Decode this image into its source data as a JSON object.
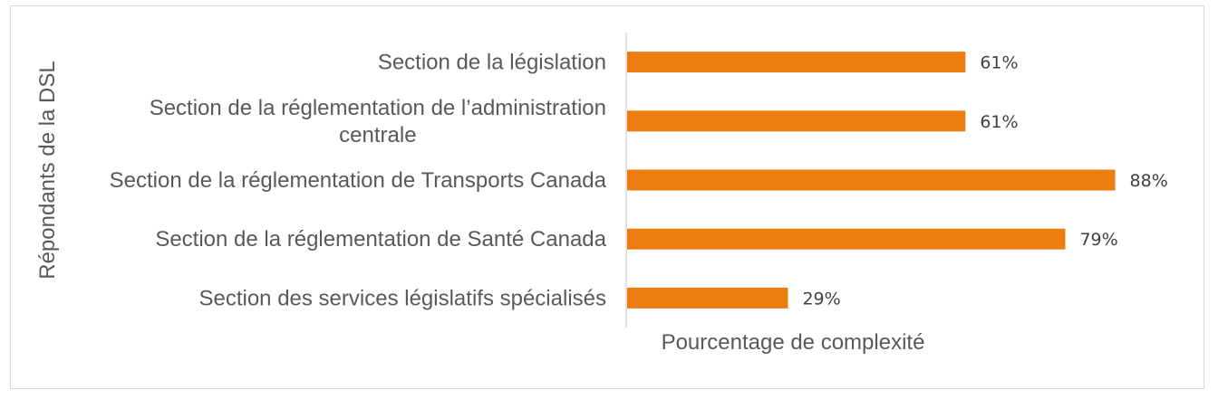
{
  "chart_data": {
    "type": "bar",
    "orientation": "horizontal",
    "categories": [
      "Section de la législation",
      "Section de la réglementation de l’administration centrale",
      "Section de la réglementation de Transports Canada",
      "Section de la réglementation de Santé Canada",
      "Section des services législatifs spécialisés"
    ],
    "category_lines": [
      [
        "Section de la législation"
      ],
      [
        "Section de la réglementation de l’administration",
        "centrale"
      ],
      [
        "Section de la réglementation de Transports Canada"
      ],
      [
        "Section de la réglementation de Santé Canada"
      ],
      [
        "Section des services législatifs spécialisés"
      ]
    ],
    "values": [
      61,
      61,
      88,
      79,
      29
    ],
    "data_labels": [
      "61%",
      "61%",
      "88%",
      "79%",
      "29%"
    ],
    "xlabel": "Pourcentage de complexité",
    "ylabel": "Répondants de la DSL",
    "xlim": [
      0,
      100
    ],
    "grid": false,
    "legend": "none",
    "bar_color": "#ED7D0F"
  }
}
